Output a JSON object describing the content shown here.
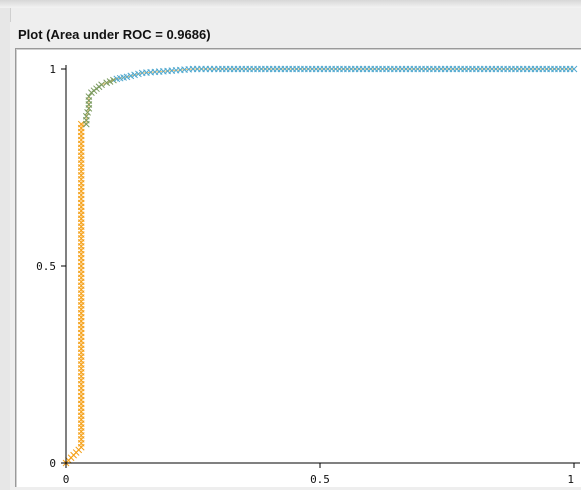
{
  "panel": {
    "title": "Plot (Area under ROC = 0.9686)"
  },
  "colors": {
    "low_threshold": "#f5a017",
    "mid_threshold": "#7a9a5e",
    "high_threshold": "#4fa8cf",
    "axis": "#000000"
  },
  "chart_data": {
    "type": "scatter",
    "title": "Plot (Area under ROC = 0.9686)",
    "xlabel": "",
    "ylabel": "",
    "xlim": [
      0,
      1
    ],
    "ylim": [
      0,
      1
    ],
    "x_ticks": [
      "0",
      "0.5",
      "1"
    ],
    "y_ticks": [
      "0",
      "0.5",
      "1"
    ],
    "marker": "x",
    "color_scale": [
      "#f5a017",
      "#7a9a5e",
      "#4fa8cf"
    ],
    "series": [
      {
        "points": [
          [
            0.0,
            0.0
          ],
          [
            0.015,
            0.02
          ],
          [
            0.03,
            0.04
          ],
          [
            0.03,
            0.1
          ],
          [
            0.03,
            0.2
          ],
          [
            0.03,
            0.3
          ],
          [
            0.03,
            0.4
          ],
          [
            0.03,
            0.5
          ],
          [
            0.03,
            0.6
          ],
          [
            0.03,
            0.7
          ],
          [
            0.03,
            0.8
          ],
          [
            0.03,
            0.86
          ],
          [
            0.04,
            0.86
          ],
          [
            0.04,
            0.88
          ],
          [
            0.045,
            0.9
          ],
          [
            0.045,
            0.93
          ],
          [
            0.05,
            0.94
          ],
          [
            0.06,
            0.95
          ],
          [
            0.07,
            0.96
          ],
          [
            0.08,
            0.965
          ],
          [
            0.1,
            0.975
          ],
          [
            0.12,
            0.98
          ],
          [
            0.15,
            0.99
          ],
          [
            0.2,
            0.995
          ],
          [
            0.25,
            1.0
          ],
          [
            0.3,
            1.0
          ],
          [
            0.4,
            1.0
          ],
          [
            0.5,
            1.0
          ],
          [
            0.6,
            1.0
          ],
          [
            0.7,
            1.0
          ],
          [
            0.8,
            1.0
          ],
          [
            0.9,
            1.0
          ],
          [
            1.0,
            1.0
          ]
        ]
      }
    ]
  }
}
